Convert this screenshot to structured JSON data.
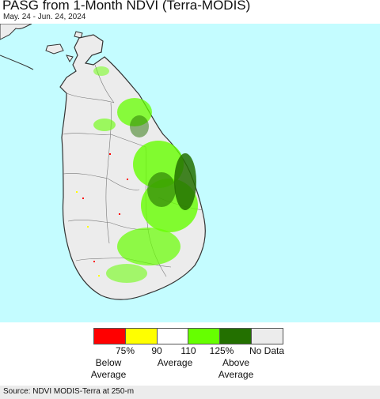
{
  "header": {
    "title": "PASG from 1-Month NDVI (Terra-MODIS)",
    "subtitle": "May. 24 - Jun. 24, 2024"
  },
  "map": {
    "ocean_color": "#c4fcff",
    "land_color": "#ececec",
    "border_color": "#333333"
  },
  "legend": {
    "colors": [
      "#ff0000",
      "#ffff00",
      "#ffffff",
      "#66ff00",
      "#237000",
      "#ececec"
    ],
    "ticks": [
      "75%",
      "90",
      "110",
      "125%",
      "No Data"
    ],
    "captions": {
      "below": [
        "Below",
        "Average"
      ],
      "average": "Average",
      "above": [
        "Above",
        "Average"
      ]
    }
  },
  "footer": {
    "source": "Source: NDVI MODIS-Terra at 250-m"
  }
}
